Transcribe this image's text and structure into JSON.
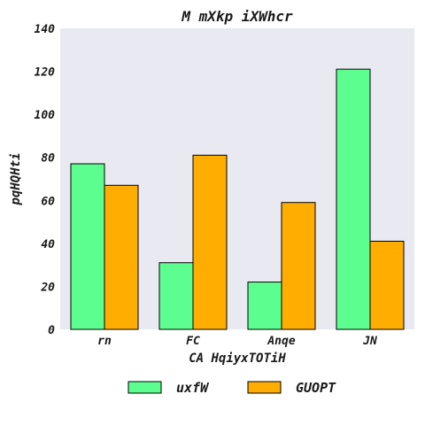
{
  "chart_data": {
    "type": "bar",
    "title": "M mXkp iXWhcr",
    "xlabel": "CA HqiyxTOTiH",
    "ylabel": "pqHQHti",
    "categories": [
      "rn",
      "FC",
      "Anqe",
      "JN"
    ],
    "series": [
      {
        "name": "uxfW",
        "color": "#5cff8f",
        "values": [
          77,
          31,
          22,
          121
        ]
      },
      {
        "name": "GUOPT",
        "color": "#ffad00",
        "values": [
          67,
          81,
          59,
          41
        ]
      }
    ],
    "ylim": [
      0,
      140
    ],
    "yticks": [
      "0",
      "20",
      "40",
      "60",
      "80",
      "100",
      "120",
      "140"
    ],
    "grid": false,
    "legend_position": "bottom-center",
    "background_color": "#e8e9f1"
  }
}
